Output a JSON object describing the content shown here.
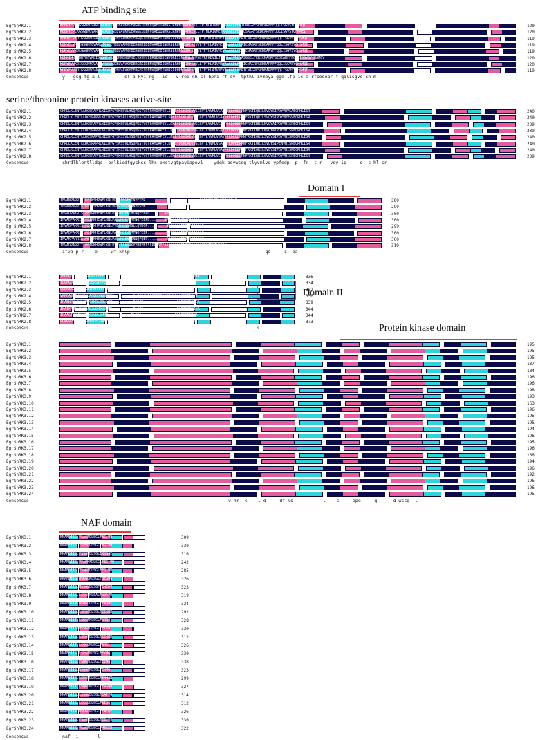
{
  "annotations": {
    "atp": "ATP binding site",
    "serthr": "serine/threonine protein kinases active-site",
    "domain1": "Domain I",
    "domain2": "Domain II",
    "pkd": "Protein kinase domain",
    "naf": "NAF domain"
  },
  "colors": {
    "identical": "#0b0b4e",
    "high": "#e35d9d",
    "low": "#2fd3dc",
    "underline": "#e53935"
  },
  "consensus_label": "Consensus",
  "blocks": [
    {
      "names": [
        "EgrSnRK2.1",
        "EgrSnRK2.2",
        "EgrSnRK2.3",
        "EgrSnRK2.4",
        "EgrSnRK2.5",
        "EgrSnRK2.6",
        "EgrSnRK2.7",
        "EgrSnRK2.8"
      ],
      "numbers": [
        "120",
        "120",
        "119",
        "119",
        "119",
        "120",
        "120",
        "119"
      ],
      "seq_preview": [
        "MEERYEPLKGSGNFGVARLVRDKRTEELFAVKYIERGRKIDENVQREIINHRSLRHPNIVRFKEVILTPTHLAIVMEYAAGGELFERICNAGRFSEDEARFFFQQLISGVSYCHSMQI",
        "MEERYEPLKGSGNFGVARLVRDKRTGELVAVKYIERGKKIDENVQREIINHRSLRHPNIIRFKEVLLTPTHLAIVMEYAAGGELFERICSAGRFSEDEARFFFQQLISGVSYCHMMEI",
        "MEKYELVKDIGSGNFGVARLMRNKETKELVAMKYIERGQKIDENVAREIINHRSLRHPNIIRFKEVVLTPTHLAIVMEYAAGGELFERICNAGRFSEDEARFFFQQLISGVSYCHSMQI",
        "MEKYELVKDIGSGNFGVARLMRNKETKELVAMKYIERGHKIDENVAREIINHRSLRHPNIIRFKEVVLTPTHLAIVMEYAAGGELFERICNAGRFSEDEARFFFQQLISGVSYCHSMQI",
        "MDRYEVVKDLGAGNFGVARLLRNKETKELVAMKYIERGHKIDENVAREIINHRSLRHPNIIRFKEVVLTPTHLAIVMEYAAGGELFERICNAGRFSEDEARYFFQQLISGVSYCHSMQI",
        "MDMPIMHDSDRYDFVRDIGSGNFGVARLMRDKQTKELVAVKYIERGEKIDENVQREIINHRSLRHPNIVRFKEVILTPTHLAIVMEYASGGELFERICNAGRFSEDEARFFFQQLISGVSYCHAMQV",
        "MDRYEVVKDIGSGNFGVAKLVRDKRSKELVAVKYIERGRKIDENVQREIINHRSLRHPNIIRFKEVLLTPTHLAIVMEYAAGGELFERICNAGRFSEDEARFFFQQLISGVSYCHSMQI",
        "MDRYEVVRDIGSGNFGVARLMRDRQSKELVAVKYIERGEKIDENVQREIINHRSLRHPNIVRFKEVILTPTHLAIVMEYAAGGELFERICNAGRFSEDEARFFFQQLISGVSYCHSMQI"
      ],
      "consensus": "y   gsg fg a l         el a kyi rg   id   v rei nh sl hpni rf ev  tpthl ivmeya gge lfe ic a rfsedear f qqlisgvs ch m"
    },
    {
      "names": [
        "EgrSnRK2.1",
        "EgrSnRK2.2",
        "EgrSnRK2.3",
        "EgrSnRK2.4",
        "EgrSnRK2.5",
        "EgrSnRK2.6",
        "EgrSnRK2.7",
        "EgrSnRK2.8"
      ],
      "numbers": [
        "240",
        "240",
        "239",
        "239",
        "240",
        "240",
        "240",
        "239"
      ],
      "seq_preview": [
        "CHRDLKLENTLLDGSPAPRLKICDFGYSKSSVLHSQPKSTVGTPAYIAPEVLSRKEYDGKIADVWSCGVTLYVMLVGAYPFEDPEDPRNFRKTIQRILSVQYSIPDYVRVSAECRHLISR",
        "CHRDLKLENTLLDGSPAPRLKICDFGYSKSALLHSQPKSTVGTPAYIAPEVLSRKEYDGKLADVWSCGVTLYVMLVGAYPFEDPEDPRNFRKTIQRILSVQYSIPDYVRVSVECRHLISR",
        "CHRDLKLENTLLDGSPAPRLKICDFGYSKSSVLHSQPKSTVGTPAYIAPEVLLKKEYDGKIADVWSCGVTLYVMLVGAYPFEDPEEPKNFRKTIHRILNVQYAIPDYVHISPECRHLISR",
        "CHRDLKLENTLLDGSPAPRLKICDFGYSKSSVLHSQPKSTVGTPAYIAPEVLLKKEYDGKIADVWSCGVTLYVMLVGAYPFEDPEEPKNFRKTIHRILNVQYAIPDYVHISPECRHLISR",
        "CHRDLKLENTLLDGSPAPRLKICDFGYSKSSVLHSQPKSTVGTPAYIAPEVLLKKEYDGKIADVWSCGVTLYVMLVGAYPFEDPEEPKNFRKTIQRILSVQYSIPDYVHISPECRHLISR",
        "CHRDLKLENTLLDGSPAPRLKICDFGYSKSSVLHSQPKSTVGTPAYIAPEVLQRKEYDGKLADVWSCGVTLYVMLVGAYPFEDPEEPKNFRKTIQRILSVQYSIPENVHISPECRHLISR",
        "CHRDLKLENTLLDGSPAPRLKICDFGYSKSSVLHSQPKSTVGTPAYIAPEVLLKKEYDGKIADVWSCGVTLYVMLVGAYPFEDPEEPKNFRKTIQRILSVQYSIPDYVHISPECRHLISR",
        "CHRDLKLENTLLDGSPAPRLKICDFGYSKSSVLHSQPKSTVGTPAYIAPEVLLKKEYDGKIADVWSCGVTLYVMLVGAYPFEDPEDPRNFRKTIQRILSVQYSIPDYVHISPECRHLISR"
      ],
      "consensus": "chrdlklentlldgs  prlkicdfgyskss lhs pkstvgtpayiapevl    ydgk advwscg tlyvmlvg ypfedp  p  fr  t r   vqy ip     s  c hl sr"
    },
    {
      "names": [
        "EgrSnRK2.1",
        "EgrSnRK2.2",
        "EgrSnRK2.3",
        "EgrSnRK2.4",
        "EgrSnRK2.5",
        "EgrSnRK2.6",
        "EgrSnRK2.7",
        "EgrSnRK2.8"
      ],
      "numbers": [
        "299",
        "299",
        "300",
        "300",
        "299",
        "300",
        "300",
        "319"
      ],
      "seq_preview": [
        "IFVANPARRISIKEIKSHPWFLKNLPKELIEGEKTNYETER..........................DQPKQSVEEVMRIIQEAR",
        "IFVANPARRISIKEIKSHPWFLKNLPKELTEGDKWNYKSEK..........................DQPMQSVEEVMKIIQEAR",
        "IFVADPAKRISIPEIRNHEWFLKNLPADLMDEKIMTNQFEEPD.......NPGVCLEEIMAIIQEAR",
        "IFVADPAKRISIPEIRNHEWFLKNLPADLMDEKIMTNQFEEPD.......NPGVCLEEIMAIIQEAR",
        "IFVADPAKRISIPEIRKHPWFLKNLPVEFMDDGKGLLQVDGP.........NDPKQSIEEILAIIQEAR",
        "IFVADPAKRISIPEIRNHEWFLKNLPADLMDEKIMTNQFEEP.........DQPMQSIEEIMKIIQEAT",
        "IFVAKPARRISIPEIRNHEWFLKNLPADLMDENTKNNQFQEP.........DQPMQSVEEIMAIIQEAT",
        "IFVADPARRITIPEIRMHPWFLKNLPTEVTAAQAKYYRRENISLPRESTEAAPAKLRKENPSPSSPQSVEEIMKIVQEAK"
      ],
      "consensus": "ifva p r    e     wf knlp                                                  qs     i  ea"
    },
    {
      "names": [
        "EgrSnRK2.1",
        "EgrSnRK2.2",
        "EgrSnRK2.3",
        "EgrSnRK2.4",
        "EgrSnRK2.5",
        "EgrSnRK2.6",
        "EgrSnRK2.7",
        "EgrSnRK2.8"
      ],
      "numbers": [
        "336",
        "334",
        "362",
        "356",
        "339",
        "344",
        "344",
        "373"
      ],
      "seq_preview": [
        "TFGEGSKVG.QSVAGPSIFFE...............EADLLS..............EVDLSGDFVAA",
        "TLGHGQKAGGPGAASEPSIFFE..............EADLLS..............EIDVSGDF",
        "VPPFASRTVSGPGWAGEDDDDDDGGDLKEGDLKEEGVEEDDEDEYEKRVKEAQASGEFQVT",
        "VPPFASRTVSGPGLAGEDDNGSQNDG.........GLKEEGVEEDDEDEYEKRVKEAQASGEFQVT",
        "IPAENPKLGGLIVGGSMDLDD.LET..........EADID................LIEASGEFVCA",
        "IPAIPPHGLNQPVADSLDMDDDDMD..........ELFFS................ELDISGEMIYA",
        "IPAAGTNNMDEQNMGSLDLDMME...........ELFFS................ELDISGEMIYA",
        "RQAPPPHSRRSFGWEEDEGDAKEE...........DAEEE..EEEDDEDYDKRVKEVHASGEFRVI"
      ],
      "consensus": "                                                                        s"
    },
    {
      "names": [
        "EgrSnRK3.1",
        "EgrSnRK3.2",
        "EgrSnRK3.3",
        "EgrSnRK3.4",
        "EgrSnRK3.5",
        "EgrSnRK3.6",
        "EgrSnRK3.7",
        "EgrSnRK3.8",
        "EgrSnRK3.9",
        "EgrSnRK3.10",
        "EgrSnRK3.11",
        "EgrSnRK3.12",
        "EgrSnRK3.13",
        "EgrSnRK3.14",
        "EgrSnRK3.15",
        "EgrSnRK3.16",
        "EgrSnRK3.17",
        "EgrSnRK3.18",
        "EgrSnRK3.19",
        "EgrSnRK3.20",
        "EgrSnRK3.21",
        "EgrSnRK3.22",
        "EgrSnRK3.23",
        "EgrSnRK3.24"
      ],
      "numbers": [
        "195",
        "195",
        "195",
        "137",
        "184",
        "196",
        "196",
        "198",
        "193",
        "163",
        "196",
        "195",
        "195",
        "194",
        "196",
        "195",
        "196",
        "156",
        "194",
        "196",
        "192",
        "196",
        "196",
        "195"
      ],
      "consensus": "v hr  k    l d     df ls           l    c     ape     g      d wscg  l"
    },
    {
      "names": [
        "EgrSnRK3.1",
        "EgrSnRK3.2",
        "EgrSnRK3.3",
        "EgrSnRK3.4",
        "EgrSnRK3.5",
        "EgrSnRK3.6",
        "EgrSnRK3.7",
        "EgrSnRK3.8",
        "EgrSnRK3.9",
        "EgrSnRK3.10",
        "EgrSnRK3.11",
        "EgrSnRK3.12",
        "EgrSnRK3.13",
        "EgrSnRK3.14",
        "EgrSnRK3.15",
        "EgrSnRK3.16",
        "EgrSnRK3.17",
        "EgrSnRK3.18",
        "EgrSnRK3.19",
        "EgrSnRK3.20",
        "EgrSnRK3.21",
        "EgrSnRK3.22",
        "EgrSnRK3.23",
        "EgrSnRK3.24"
      ],
      "numbers": [
        "309",
        "330",
        "316",
        "242",
        "285",
        "326",
        "323",
        "319",
        "324",
        "292",
        "328",
        "330",
        "312",
        "326",
        "330",
        "338",
        "323",
        "299",
        "327",
        "314",
        "312",
        "326",
        "330",
        "322"
      ],
      "seq_preview": [
        "NNAFDIIS.YSAGFDLSGLFEG.VD",
        "NNAFEIIS.YSFVLDLSGLFVG.VD",
        "NNAFDIIS.FSSGFDLSGLIRDSGE",
        "NNAFDIIS.YFAPKFDLSGLFEG.VD",
        "NNAFDIIS.YSAGFDLSGLFEG.VD",
        "NNAFDIIG.MSKGLNLSGLFDEGQG",
        "NNAFDIIG.MSSGLDLSGFFEKEDV",
        "NNAFEIIS.LSEGFNLSALFDDAYD",
        "NNAFDIIA.MSHGLDLSGLFEAQDE",
        "NNAFDIIS.LSEGFDLSGLFEEKRR",
        "NNAFEIIT.LSEGFNLSGLFDRQC.",
        "NNAFEIISSMSSGFDLSGLFETER.",
        "NNAFEIIS.LSEGFDLSGLFEEKKR",
        "NNAFDIIT.LSQGLNLSGLFERGL.",
        "NNAFEIIS.LSEGFNLSGLFEKMG.",
        "NNAFEIIS.FSRGFDLSGLFEEAG.",
        "NNAFEIIS.RSQGFNLSGLFEKMG.",
        "NNAFEIIS.LSEGFDLSGLFENHAN",
        "NNAFEIIT.LSQGLNLSGLFERGQN",
        "NNAFDIIS.LSSGLDLSGLFEATTG",
        "NNAFEIIS.LSSGLDLSGLFEIDS.",
        "NNAFEIIA.MSKGLPLSGLFEAEQE",
        "NNAFEIIS.FSAGFDLSGLFEE.FS",
        "NNAFEIIS.YSAGFDLSGLFMESKR."
      ],
      "consensus": "naf  i       l"
    }
  ]
}
